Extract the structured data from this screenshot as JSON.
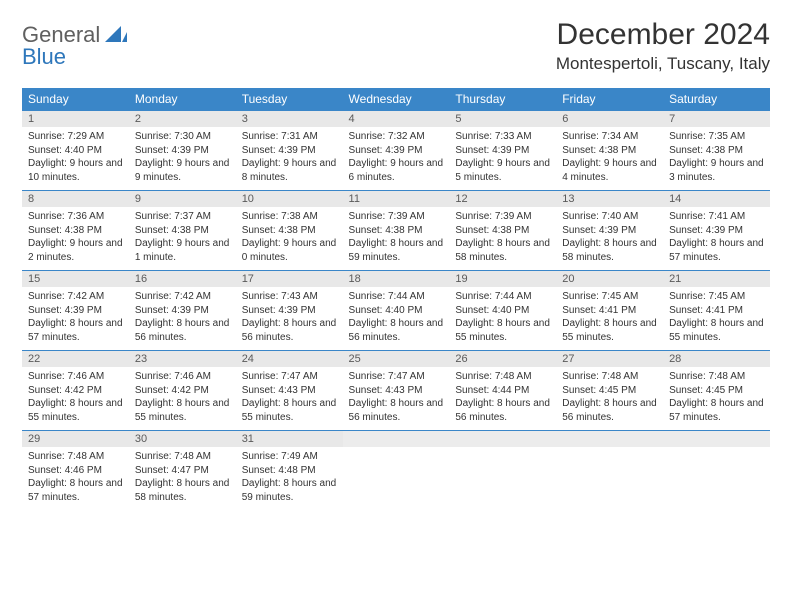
{
  "brand": {
    "word1": "General",
    "word2": "Blue"
  },
  "title": "December 2024",
  "location": "Montespertoli, Tuscany, Italy",
  "colors": {
    "header_bg": "#3a86c8",
    "header_text": "#ffffff",
    "daynum_bg": "#e8e8e8",
    "daynum_text": "#5a5a5a",
    "row_divider": "#3a86c8",
    "body_text": "#333333",
    "logo_gray": "#606060",
    "logo_blue": "#2e77bb",
    "page_bg": "#ffffff"
  },
  "typography": {
    "title_fontsize": 30,
    "location_fontsize": 17,
    "weekday_fontsize": 12,
    "daynum_fontsize": 11,
    "cell_fontsize": 10,
    "logo_fontsize": 22
  },
  "weekdays": [
    "Sunday",
    "Monday",
    "Tuesday",
    "Wednesday",
    "Thursday",
    "Friday",
    "Saturday"
  ],
  "weeks": [
    [
      {
        "n": "1",
        "sunrise": "Sunrise: 7:29 AM",
        "sunset": "Sunset: 4:40 PM",
        "daylight": "Daylight: 9 hours and 10 minutes."
      },
      {
        "n": "2",
        "sunrise": "Sunrise: 7:30 AM",
        "sunset": "Sunset: 4:39 PM",
        "daylight": "Daylight: 9 hours and 9 minutes."
      },
      {
        "n": "3",
        "sunrise": "Sunrise: 7:31 AM",
        "sunset": "Sunset: 4:39 PM",
        "daylight": "Daylight: 9 hours and 8 minutes."
      },
      {
        "n": "4",
        "sunrise": "Sunrise: 7:32 AM",
        "sunset": "Sunset: 4:39 PM",
        "daylight": "Daylight: 9 hours and 6 minutes."
      },
      {
        "n": "5",
        "sunrise": "Sunrise: 7:33 AM",
        "sunset": "Sunset: 4:39 PM",
        "daylight": "Daylight: 9 hours and 5 minutes."
      },
      {
        "n": "6",
        "sunrise": "Sunrise: 7:34 AM",
        "sunset": "Sunset: 4:38 PM",
        "daylight": "Daylight: 9 hours and 4 minutes."
      },
      {
        "n": "7",
        "sunrise": "Sunrise: 7:35 AM",
        "sunset": "Sunset: 4:38 PM",
        "daylight": "Daylight: 9 hours and 3 minutes."
      }
    ],
    [
      {
        "n": "8",
        "sunrise": "Sunrise: 7:36 AM",
        "sunset": "Sunset: 4:38 PM",
        "daylight": "Daylight: 9 hours and 2 minutes."
      },
      {
        "n": "9",
        "sunrise": "Sunrise: 7:37 AM",
        "sunset": "Sunset: 4:38 PM",
        "daylight": "Daylight: 9 hours and 1 minute."
      },
      {
        "n": "10",
        "sunrise": "Sunrise: 7:38 AM",
        "sunset": "Sunset: 4:38 PM",
        "daylight": "Daylight: 9 hours and 0 minutes."
      },
      {
        "n": "11",
        "sunrise": "Sunrise: 7:39 AM",
        "sunset": "Sunset: 4:38 PM",
        "daylight": "Daylight: 8 hours and 59 minutes."
      },
      {
        "n": "12",
        "sunrise": "Sunrise: 7:39 AM",
        "sunset": "Sunset: 4:38 PM",
        "daylight": "Daylight: 8 hours and 58 minutes."
      },
      {
        "n": "13",
        "sunrise": "Sunrise: 7:40 AM",
        "sunset": "Sunset: 4:39 PM",
        "daylight": "Daylight: 8 hours and 58 minutes."
      },
      {
        "n": "14",
        "sunrise": "Sunrise: 7:41 AM",
        "sunset": "Sunset: 4:39 PM",
        "daylight": "Daylight: 8 hours and 57 minutes."
      }
    ],
    [
      {
        "n": "15",
        "sunrise": "Sunrise: 7:42 AM",
        "sunset": "Sunset: 4:39 PM",
        "daylight": "Daylight: 8 hours and 57 minutes."
      },
      {
        "n": "16",
        "sunrise": "Sunrise: 7:42 AM",
        "sunset": "Sunset: 4:39 PM",
        "daylight": "Daylight: 8 hours and 56 minutes."
      },
      {
        "n": "17",
        "sunrise": "Sunrise: 7:43 AM",
        "sunset": "Sunset: 4:39 PM",
        "daylight": "Daylight: 8 hours and 56 minutes."
      },
      {
        "n": "18",
        "sunrise": "Sunrise: 7:44 AM",
        "sunset": "Sunset: 4:40 PM",
        "daylight": "Daylight: 8 hours and 56 minutes."
      },
      {
        "n": "19",
        "sunrise": "Sunrise: 7:44 AM",
        "sunset": "Sunset: 4:40 PM",
        "daylight": "Daylight: 8 hours and 55 minutes."
      },
      {
        "n": "20",
        "sunrise": "Sunrise: 7:45 AM",
        "sunset": "Sunset: 4:41 PM",
        "daylight": "Daylight: 8 hours and 55 minutes."
      },
      {
        "n": "21",
        "sunrise": "Sunrise: 7:45 AM",
        "sunset": "Sunset: 4:41 PM",
        "daylight": "Daylight: 8 hours and 55 minutes."
      }
    ],
    [
      {
        "n": "22",
        "sunrise": "Sunrise: 7:46 AM",
        "sunset": "Sunset: 4:42 PM",
        "daylight": "Daylight: 8 hours and 55 minutes."
      },
      {
        "n": "23",
        "sunrise": "Sunrise: 7:46 AM",
        "sunset": "Sunset: 4:42 PM",
        "daylight": "Daylight: 8 hours and 55 minutes."
      },
      {
        "n": "24",
        "sunrise": "Sunrise: 7:47 AM",
        "sunset": "Sunset: 4:43 PM",
        "daylight": "Daylight: 8 hours and 55 minutes."
      },
      {
        "n": "25",
        "sunrise": "Sunrise: 7:47 AM",
        "sunset": "Sunset: 4:43 PM",
        "daylight": "Daylight: 8 hours and 56 minutes."
      },
      {
        "n": "26",
        "sunrise": "Sunrise: 7:48 AM",
        "sunset": "Sunset: 4:44 PM",
        "daylight": "Daylight: 8 hours and 56 minutes."
      },
      {
        "n": "27",
        "sunrise": "Sunrise: 7:48 AM",
        "sunset": "Sunset: 4:45 PM",
        "daylight": "Daylight: 8 hours and 56 minutes."
      },
      {
        "n": "28",
        "sunrise": "Sunrise: 7:48 AM",
        "sunset": "Sunset: 4:45 PM",
        "daylight": "Daylight: 8 hours and 57 minutes."
      }
    ],
    [
      {
        "n": "29",
        "sunrise": "Sunrise: 7:48 AM",
        "sunset": "Sunset: 4:46 PM",
        "daylight": "Daylight: 8 hours and 57 minutes."
      },
      {
        "n": "30",
        "sunrise": "Sunrise: 7:48 AM",
        "sunset": "Sunset: 4:47 PM",
        "daylight": "Daylight: 8 hours and 58 minutes."
      },
      {
        "n": "31",
        "sunrise": "Sunrise: 7:49 AM",
        "sunset": "Sunset: 4:48 PM",
        "daylight": "Daylight: 8 hours and 59 minutes."
      },
      null,
      null,
      null,
      null
    ]
  ]
}
